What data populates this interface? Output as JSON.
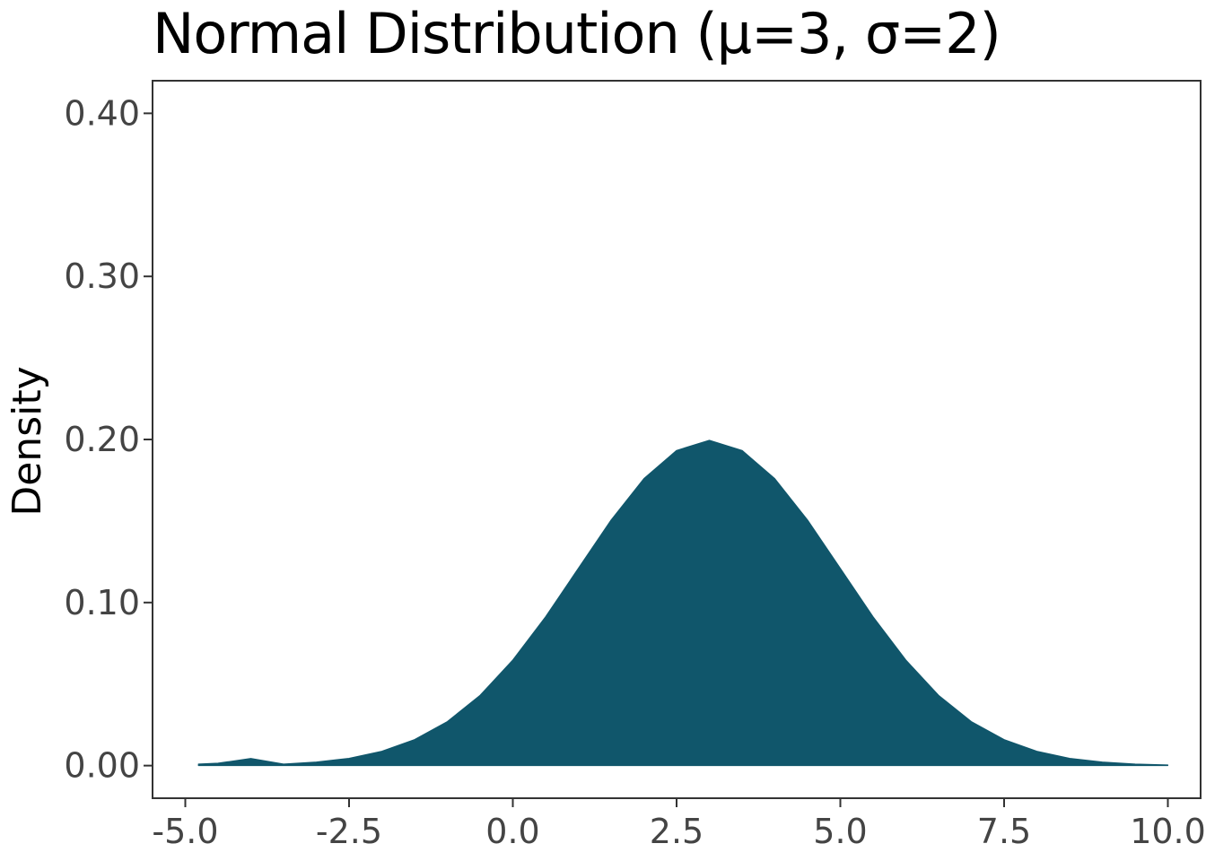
{
  "chart_data": {
    "type": "area",
    "title": "Normal Distribution (μ=3, σ=2)",
    "xlabel": "",
    "ylabel": "Density",
    "xlim": [
      -5.5,
      10.5
    ],
    "ylim": [
      -0.02,
      0.42
    ],
    "x_ticks": [
      -5.0,
      -2.5,
      0.0,
      2.5,
      5.0,
      7.5,
      10.0
    ],
    "x_tick_labels": [
      "-5.0",
      "-2.5",
      "0.0",
      "2.5",
      "5.0",
      "7.5",
      "10.0"
    ],
    "y_ticks": [
      0.0,
      0.1,
      0.2,
      0.3,
      0.4
    ],
    "y_tick_labels": [
      "0.00",
      "0.10",
      "0.20",
      "0.30",
      "0.40"
    ],
    "grid": false,
    "fill_color": "#10566B",
    "series": [
      {
        "x": [
          -4.8,
          -4.5,
          -4.0,
          -3.5,
          -3.0,
          -2.5,
          -2.0,
          -1.5,
          -1.0,
          -0.5,
          0.0,
          0.5,
          1.0,
          1.5,
          2.0,
          2.5,
          3.0,
          3.5,
          4.0,
          4.5,
          5.0,
          5.5,
          6.0,
          6.5,
          7.0,
          7.5,
          8.0,
          8.5,
          9.0,
          9.5,
          10.0
        ],
        "y": [
          0.001,
          0.0015,
          0.0044,
          0.001,
          0.0022,
          0.0045,
          0.0088,
          0.016,
          0.027,
          0.0431,
          0.0648,
          0.0913,
          0.121,
          0.1506,
          0.176,
          0.1933,
          0.1995,
          0.1933,
          0.176,
          0.1506,
          0.121,
          0.0913,
          0.0648,
          0.0431,
          0.027,
          0.016,
          0.0088,
          0.0045,
          0.0022,
          0.001,
          0.0004
        ]
      }
    ]
  }
}
